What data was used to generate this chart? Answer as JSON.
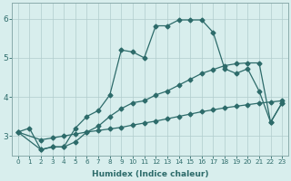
{
  "background_color": "#d8eeed",
  "grid_color": "#b0cccc",
  "line_color": "#2d6b6a",
  "markersize": 2.5,
  "xlabel": "Humidex (Indice chaleur)",
  "x_ticks": [
    0,
    1,
    2,
    3,
    4,
    5,
    6,
    7,
    8,
    9,
    10,
    11,
    12,
    13,
    14,
    15,
    16,
    17,
    18,
    19,
    20,
    21,
    22,
    23
  ],
  "ylim": [
    2.5,
    6.4
  ],
  "xlim": [
    -0.5,
    23.5
  ],
  "y_ticks": [
    3,
    4,
    5,
    6
  ],
  "curve1_x": [
    0,
    1,
    2,
    3,
    4,
    5,
    6,
    7,
    8,
    9,
    10,
    11,
    12,
    13,
    14,
    15,
    16,
    17,
    18,
    19,
    20,
    21,
    22,
    23
  ],
  "curve1_y": [
    3.1,
    3.2,
    2.65,
    2.72,
    2.72,
    3.2,
    3.5,
    3.65,
    4.05,
    5.2,
    5.15,
    5.0,
    5.82,
    5.82,
    5.97,
    5.97,
    5.97,
    5.65,
    4.72,
    4.6,
    4.72,
    4.15,
    3.35,
    3.85
  ],
  "curve2_x": [
    0,
    2,
    3,
    4,
    5,
    6,
    7,
    8,
    9,
    10,
    11,
    12,
    13,
    14,
    15,
    16,
    17,
    18,
    19,
    20,
    21,
    22,
    23
  ],
  "curve2_y": [
    3.1,
    2.65,
    2.72,
    2.72,
    2.85,
    3.1,
    3.25,
    3.5,
    3.7,
    3.85,
    3.9,
    4.05,
    4.15,
    4.3,
    4.45,
    4.6,
    4.7,
    4.8,
    4.85,
    4.87,
    4.87,
    3.35,
    3.85
  ],
  "curve3_x": [
    0,
    2,
    3,
    4,
    5,
    6,
    7,
    8,
    9,
    10,
    11,
    12,
    13,
    14,
    15,
    16,
    17,
    18,
    19,
    20,
    21,
    22,
    23
  ],
  "curve3_y": [
    3.1,
    2.9,
    2.95,
    3.0,
    3.05,
    3.1,
    3.14,
    3.18,
    3.22,
    3.28,
    3.33,
    3.38,
    3.44,
    3.5,
    3.56,
    3.62,
    3.67,
    3.72,
    3.76,
    3.8,
    3.84,
    3.87,
    3.9
  ]
}
